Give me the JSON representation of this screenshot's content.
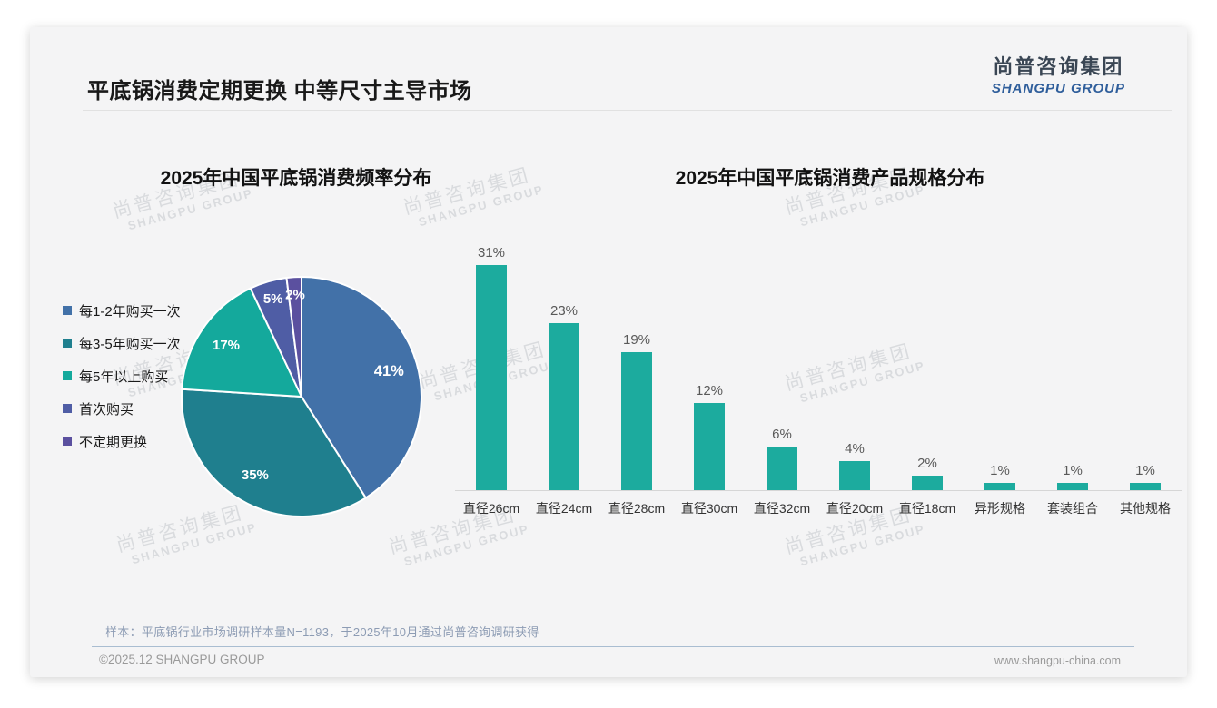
{
  "page": {
    "title": "平底锅消费定期更换 中等尺寸主导市场",
    "footer_note": "样本：平底锅行业市场调研样本量N=1193，于2025年10月通过尚普咨询调研获得",
    "copyright": "©2025.12 SHANGPU GROUP",
    "website": "www.shangpu-china.com"
  },
  "brand": {
    "logo_cn": "尚普咨询集团",
    "logo_en": "SHANGPU GROUP",
    "watermark_cn": "尚普咨询集团",
    "watermark_en": "SHANGPU GROUP"
  },
  "colors": {
    "slide_background": "#f4f4f5",
    "accent_teal": "#1cab9e",
    "title_text": "#191919",
    "logo_blue": "#2f5e9b",
    "value_label_gray": "#595959",
    "footer_note_blue_gray": "#8d9cb4"
  },
  "chart_data": [
    {
      "type": "pie",
      "title": "2025年中国平底锅消费频率分布",
      "labels": [
        "每1-2年购买一次",
        "每3-5年购买一次",
        "每5年以上购买",
        "首次购买",
        "不定期更换"
      ],
      "values": [
        41,
        35,
        17,
        5,
        2
      ],
      "data_labels": [
        "41%",
        "35%",
        "17%",
        "5%",
        "2%"
      ],
      "colors": [
        "#4271a8",
        "#1f7f8e",
        "#14a99c",
        "#4f5da5",
        "#5b509f"
      ],
      "legend_position": "left",
      "start_angle_deg_from_top": 0,
      "direction": "clockwise"
    },
    {
      "type": "bar",
      "title": "2025年中国平底锅消费产品规格分布",
      "categories": [
        "直径26cm",
        "直径24cm",
        "直径28cm",
        "直径30cm",
        "直径32cm",
        "直径20cm",
        "直径18cm",
        "异形规格",
        "套装组合",
        "其他规格"
      ],
      "values": [
        31,
        23,
        19,
        12,
        6,
        4,
        2,
        1,
        1,
        1
      ],
      "data_labels": [
        "31%",
        "23%",
        "19%",
        "12%",
        "6%",
        "4%",
        "2%",
        "1%",
        "1%",
        "1%"
      ],
      "bar_color": "#1cab9e",
      "xlabel": "",
      "ylabel": "",
      "ylim": [
        0,
        31
      ],
      "grid": false,
      "legend": false
    }
  ]
}
